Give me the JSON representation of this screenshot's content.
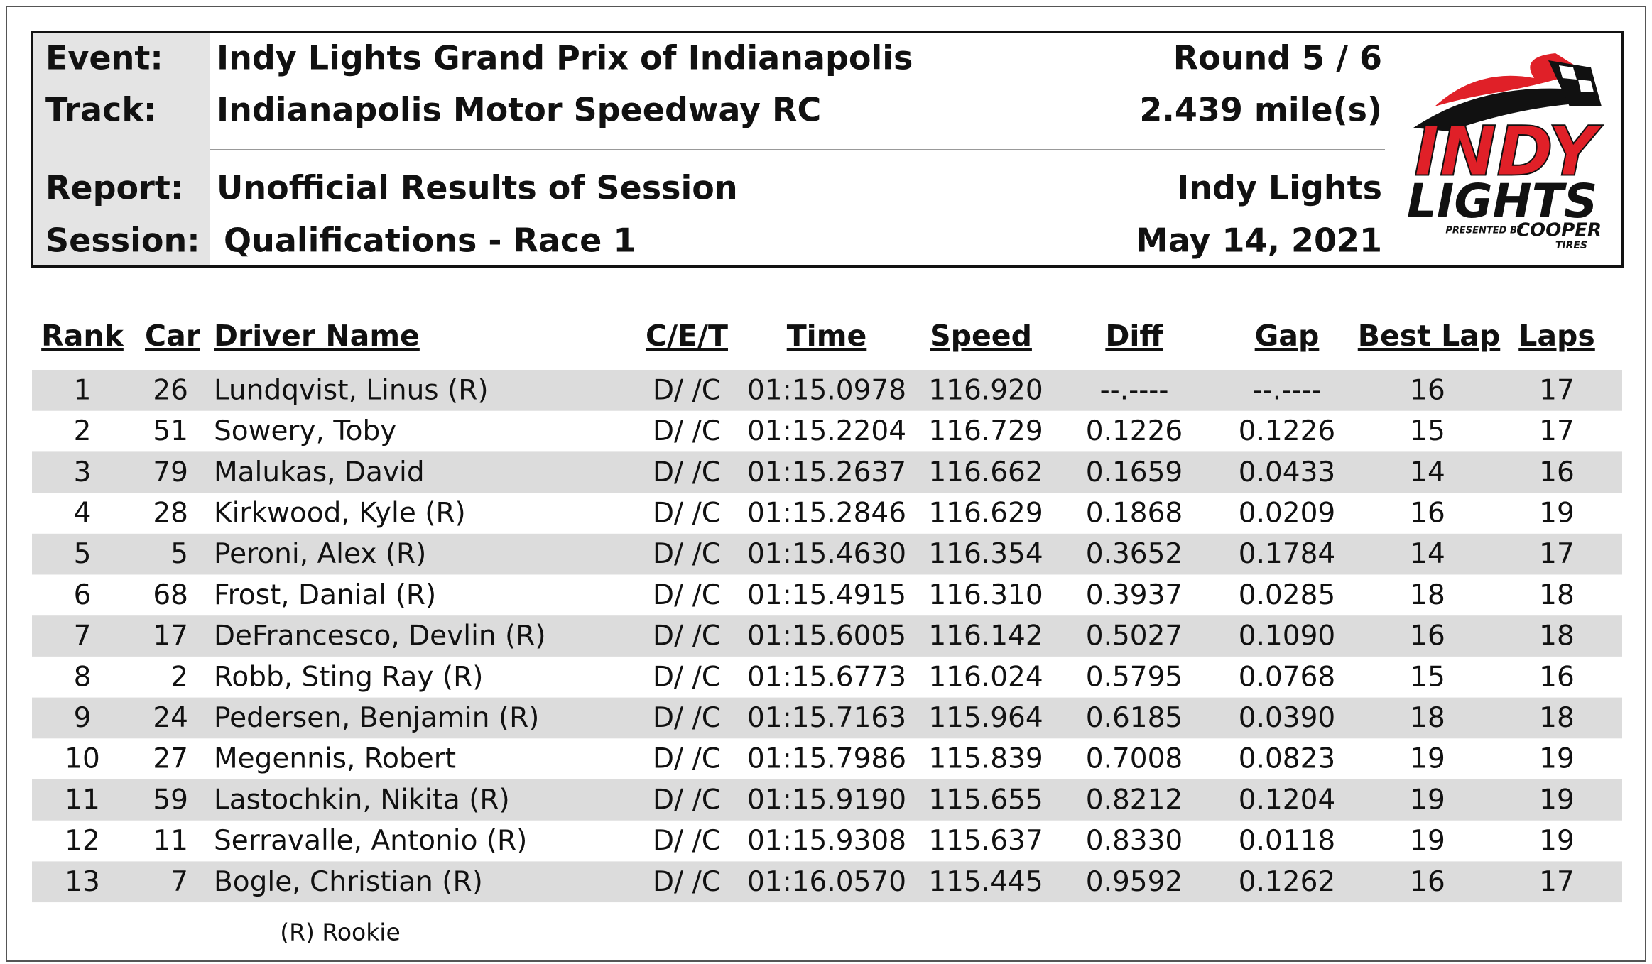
{
  "header": {
    "labels": [
      "Event:",
      "Track:",
      "Report:",
      "Session:"
    ],
    "values": [
      "Indy Lights Grand Prix of Indianapolis",
      "Indianapolis Motor Speedway RC",
      "Unofficial Results of Session",
      "Qualifications - Race 1"
    ],
    "right": [
      "Round 5 / 6",
      "2.439 mile(s)",
      "Indy Lights",
      "May 14, 2021"
    ]
  },
  "logo": {
    "top": "INDY",
    "bottom": "LIGHTS",
    "presented": "PRESENTED BY",
    "sponsor": "COOPER",
    "sponsor_sub": "TIRES"
  },
  "table": {
    "columns": [
      "Rank",
      "Car",
      "Driver Name",
      "C/E/T",
      "Time",
      "Speed",
      "Diff",
      "Gap",
      "Best Lap",
      "Laps"
    ],
    "rows": [
      [
        "1",
        "26",
        "Lundqvist, Linus (R)",
        "D/ /C",
        "01:15.0978",
        "116.920",
        "--.----",
        "--.----",
        "16",
        "17"
      ],
      [
        "2",
        "51",
        "Sowery, Toby",
        "D/ /C",
        "01:15.2204",
        "116.729",
        "0.1226",
        "0.1226",
        "15",
        "17"
      ],
      [
        "3",
        "79",
        "Malukas, David",
        "D/ /C",
        "01:15.2637",
        "116.662",
        "0.1659",
        "0.0433",
        "14",
        "16"
      ],
      [
        "4",
        "28",
        "Kirkwood, Kyle (R)",
        "D/ /C",
        "01:15.2846",
        "116.629",
        "0.1868",
        "0.0209",
        "16",
        "19"
      ],
      [
        "5",
        "5",
        "Peroni, Alex (R)",
        "D/ /C",
        "01:15.4630",
        "116.354",
        "0.3652",
        "0.1784",
        "14",
        "17"
      ],
      [
        "6",
        "68",
        "Frost, Danial (R)",
        "D/ /C",
        "01:15.4915",
        "116.310",
        "0.3937",
        "0.0285",
        "18",
        "18"
      ],
      [
        "7",
        "17",
        "DeFrancesco, Devlin (R)",
        "D/ /C",
        "01:15.6005",
        "116.142",
        "0.5027",
        "0.1090",
        "16",
        "18"
      ],
      [
        "8",
        "2",
        "Robb, Sting Ray (R)",
        "D/ /C",
        "01:15.6773",
        "116.024",
        "0.5795",
        "0.0768",
        "15",
        "16"
      ],
      [
        "9",
        "24",
        "Pedersen, Benjamin (R)",
        "D/ /C",
        "01:15.7163",
        "115.964",
        "0.6185",
        "0.0390",
        "18",
        "18"
      ],
      [
        "10",
        "27",
        "Megennis, Robert",
        "D/ /C",
        "01:15.7986",
        "115.839",
        "0.7008",
        "0.0823",
        "19",
        "19"
      ],
      [
        "11",
        "59",
        "Lastochkin, Nikita (R)",
        "D/ /C",
        "01:15.9190",
        "115.655",
        "0.8212",
        "0.1204",
        "19",
        "19"
      ],
      [
        "12",
        "11",
        "Serravalle, Antonio (R)",
        "D/ /C",
        "01:15.9308",
        "115.637",
        "0.8330",
        "0.0118",
        "19",
        "19"
      ],
      [
        "13",
        "7",
        "Bogle, Christian (R)",
        "D/ /C",
        "01:16.0570",
        "115.445",
        "0.9592",
        "0.1262",
        "16",
        "17"
      ]
    ]
  },
  "footnote": "(R) Rookie"
}
